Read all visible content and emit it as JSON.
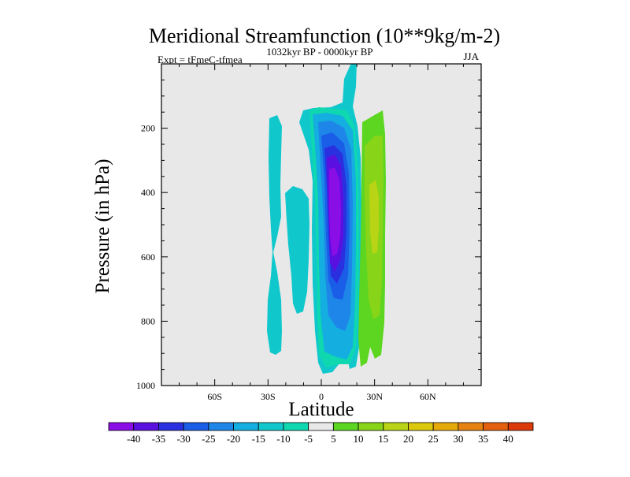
{
  "chart_data": {
    "type": "contour",
    "title": "Meridional Streamfunction (10**9kg/m-2)",
    "subtitle_left": "Expt = tFmeC-tfmea",
    "subtitle_center": "1032kyr BP - 0000kyr BP",
    "subtitle_right": "JJA",
    "xlabel": "Latitude",
    "ylabel": "Pressure (in hPa)",
    "xlim": [
      -90,
      90
    ],
    "ylim": [
      1000,
      0
    ],
    "x_ticks": [
      {
        "value": -60,
        "label": "60S"
      },
      {
        "value": -30,
        "label": "30S"
      },
      {
        "value": 0,
        "label": "0"
      },
      {
        "value": 30,
        "label": "30N"
      },
      {
        "value": 60,
        "label": "60N"
      }
    ],
    "y_ticks": [
      {
        "value": 200,
        "label": "200"
      },
      {
        "value": 400,
        "label": "400"
      },
      {
        "value": 600,
        "label": "600"
      },
      {
        "value": 800,
        "label": "800"
      },
      {
        "value": 1000,
        "label": "1000"
      }
    ],
    "contour_levels": [
      -40,
      -35,
      -30,
      -25,
      -20,
      -15,
      -10,
      -5,
      5,
      10,
      15,
      20,
      25,
      30,
      35,
      40
    ],
    "colorbar_labels": [
      "-40",
      "-35",
      "-30",
      "-25",
      "-20",
      "-15",
      "-10",
      "-5",
      "5",
      "10",
      "15",
      "20",
      "25",
      "30",
      "35",
      "40"
    ],
    "colorbar_colors": [
      "#8a0ee6",
      "#5a10e0",
      "#2a30e0",
      "#1a5ee8",
      "#1e86e8",
      "#14aee0",
      "#10c8cc",
      "#0fd8b0",
      "#e8e8e8",
      "#5cd620",
      "#88d418",
      "#b8d414",
      "#dcc80c",
      "#e6aa08",
      "#e68210",
      "#e2600e",
      "#dc3a0a"
    ],
    "regions": [
      {
        "label": "southern midlatitude cell",
        "value_range": [
          -10,
          -5
        ],
        "lat_center": -25,
        "lat_halfwidth": 6,
        "p_top": 170,
        "p_bottom": 890
      },
      {
        "label": "southern subtropical cell",
        "value_range": [
          -10,
          -5
        ],
        "lat_center": -12,
        "lat_halfwidth": 7,
        "p_top": 370,
        "p_bottom": 840
      },
      {
        "label": "winter Hadley cell",
        "value_range": [
          -40,
          -5
        ],
        "min_value": -40,
        "lat_center": 7,
        "lat_halfwidth": 14,
        "p_top": 100,
        "p_bottom": 960
      },
      {
        "label": "summer Hadley cell",
        "value_range": [
          5,
          15
        ],
        "max_value": 15,
        "lat_center": 31,
        "lat_halfwidth": 8,
        "p_top": 180,
        "p_bottom": 940
      }
    ]
  }
}
